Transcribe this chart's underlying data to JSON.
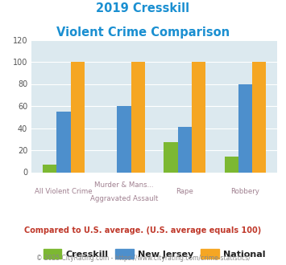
{
  "title_line1": "2019 Cresskill",
  "title_line2": "Violent Crime Comparison",
  "cat_labels_top": [
    "",
    "Murder & Mans...",
    "",
    ""
  ],
  "cat_labels_bottom": [
    "All Violent Crime",
    "Aggravated Assault",
    "Rape",
    "Robbery"
  ],
  "cresskill": [
    7,
    0,
    27,
    14
  ],
  "new_jersey": [
    55,
    60,
    41,
    80
  ],
  "national": [
    100,
    100,
    100,
    100
  ],
  "colors": {
    "cresskill": "#7cb832",
    "new_jersey": "#4d8fcc",
    "national": "#f5a623"
  },
  "ylim": [
    0,
    120
  ],
  "yticks": [
    0,
    20,
    40,
    60,
    80,
    100,
    120
  ],
  "title_color": "#1a8fd1",
  "background_chart": "#dce9ef",
  "background_fig": "#ffffff",
  "label_color": "#a08090",
  "footnote": "Compared to U.S. average. (U.S. average equals 100)",
  "footnote_color": "#c0392b",
  "copyright": "© 2025 CityRating.com - https://www.cityrating.com/crime-statistics/",
  "copyright_color": "#888888",
  "legend_labels": [
    "Cresskill",
    "New Jersey",
    "National"
  ]
}
